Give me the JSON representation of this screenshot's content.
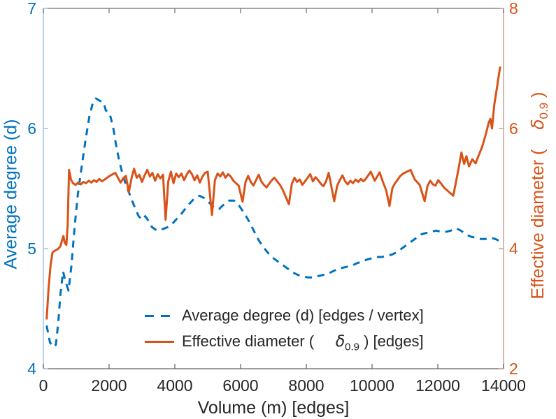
{
  "figure": {
    "background": "#ffffff",
    "frame": {
      "top_color": "#6f6f6f",
      "bottom_color": "#5f5f5f"
    },
    "x_axis": {
      "label": "Volume (m) [edges]",
      "tick_labels": [
        "0",
        "2000",
        "4000",
        "6000",
        "8000",
        "10000",
        "12000",
        "14000"
      ],
      "ticks": [
        0,
        2000,
        4000,
        6000,
        8000,
        10000,
        12000,
        14000
      ],
      "tick_text_color": "#262626",
      "label_color": "#262626"
    },
    "left_axis": {
      "label": "Average degree (d)",
      "tick_labels": [
        "4",
        "5",
        "6",
        "7"
      ],
      "ticks": [
        4,
        5,
        6,
        7
      ],
      "color": "#0072BD",
      "spine_color": "#a9c7e6"
    },
    "right_axis": {
      "label_prefix": "Effective diameter (    ",
      "delta": "δ",
      "subscript": "0.9",
      "label_suffix": " )",
      "tick_labels": [
        "2",
        "4",
        "6",
        "8"
      ],
      "ticks": [
        2,
        4,
        6,
        8
      ],
      "color": "#D95319",
      "spine_color": "#c9a99e"
    },
    "legend": {
      "text_color": "#262626",
      "items": [
        {
          "label": "Average degree (d) [edges / vertex]",
          "style": "dashed",
          "color": "#0072BD"
        },
        {
          "label_prefix": "Effective diameter (     ",
          "delta": "δ",
          "subscript": "0.9",
          "label_suffix": " ) [edges]",
          "style": "solid",
          "color": "#D95319"
        }
      ]
    }
  },
  "chart_data": {
    "type": "line",
    "title": "",
    "xlabel": "Volume (m) [edges]",
    "x_range": [
      0,
      14000
    ],
    "left_ylabel": "Average degree (d)",
    "left_ylim": [
      4,
      7
    ],
    "right_ylabel": "Effective diameter ( δ_0.9 )",
    "right_ylim": [
      2,
      8
    ],
    "grid": false,
    "legend_position": "south-inside",
    "series": [
      {
        "name": "Average degree (d) [edges / vertex]",
        "axis": "left",
        "color": "#0072BD",
        "line_style": "dashed",
        "points": [
          [
            100,
            4.36
          ],
          [
            200,
            4.22
          ],
          [
            300,
            4.18
          ],
          [
            380,
            4.2
          ],
          [
            450,
            4.38
          ],
          [
            520,
            4.62
          ],
          [
            600,
            4.81
          ],
          [
            660,
            4.74
          ],
          [
            766,
            4.65
          ],
          [
            850,
            4.85
          ],
          [
            950,
            5.18
          ],
          [
            1050,
            5.45
          ],
          [
            1150,
            5.65
          ],
          [
            1280,
            5.9
          ],
          [
            1400,
            6.1
          ],
          [
            1510,
            6.22
          ],
          [
            1600,
            6.25
          ],
          [
            1720,
            6.23
          ],
          [
            1830,
            6.22
          ],
          [
            1900,
            6.15
          ],
          [
            1980,
            6.14
          ],
          [
            2040,
            6.1
          ],
          [
            2130,
            6.0
          ],
          [
            2200,
            5.88
          ],
          [
            2300,
            5.74
          ],
          [
            2400,
            5.63
          ],
          [
            2500,
            5.54
          ],
          [
            2600,
            5.47
          ],
          [
            2700,
            5.4
          ],
          [
            2800,
            5.33
          ],
          [
            2900,
            5.27
          ],
          [
            3000,
            5.24
          ],
          [
            3100,
            5.27
          ],
          [
            3200,
            5.23
          ],
          [
            3300,
            5.18
          ],
          [
            3400,
            5.16
          ],
          [
            3500,
            5.15
          ],
          [
            3600,
            5.16
          ],
          [
            3700,
            5.17
          ],
          [
            3800,
            5.18
          ],
          [
            3900,
            5.2
          ],
          [
            4000,
            5.23
          ],
          [
            4200,
            5.29
          ],
          [
            4400,
            5.36
          ],
          [
            4600,
            5.42
          ],
          [
            4750,
            5.44
          ],
          [
            4900,
            5.42
          ],
          [
            5050,
            5.38
          ],
          [
            5200,
            5.34
          ],
          [
            5350,
            5.33
          ],
          [
            5500,
            5.37
          ],
          [
            5650,
            5.4
          ],
          [
            5800,
            5.4
          ],
          [
            5950,
            5.36
          ],
          [
            6100,
            5.3
          ],
          [
            6250,
            5.23
          ],
          [
            6400,
            5.15
          ],
          [
            6550,
            5.07
          ],
          [
            6700,
            5.01
          ],
          [
            6850,
            4.96
          ],
          [
            7000,
            4.92
          ],
          [
            7150,
            4.89
          ],
          [
            7300,
            4.86
          ],
          [
            7450,
            4.83
          ],
          [
            7600,
            4.8
          ],
          [
            7750,
            4.78
          ],
          [
            7900,
            4.77
          ],
          [
            8050,
            4.76
          ],
          [
            8200,
            4.76
          ],
          [
            8350,
            4.77
          ],
          [
            8500,
            4.78
          ],
          [
            8650,
            4.79
          ],
          [
            8800,
            4.81
          ],
          [
            8950,
            4.83
          ],
          [
            9100,
            4.84
          ],
          [
            9250,
            4.85
          ],
          [
            9400,
            4.86
          ],
          [
            9550,
            4.88
          ],
          [
            9700,
            4.89
          ],
          [
            9850,
            4.91
          ],
          [
            10000,
            4.92
          ],
          [
            10150,
            4.93
          ],
          [
            10300,
            4.93
          ],
          [
            10450,
            4.94
          ],
          [
            10600,
            4.95
          ],
          [
            10750,
            4.97
          ],
          [
            10900,
            5.0
          ],
          [
            11050,
            5.03
          ],
          [
            11200,
            5.06
          ],
          [
            11350,
            5.09
          ],
          [
            11500,
            5.12
          ],
          [
            11650,
            5.13
          ],
          [
            11800,
            5.14
          ],
          [
            11950,
            5.15
          ],
          [
            12100,
            5.14
          ],
          [
            12250,
            5.14
          ],
          [
            12400,
            5.15
          ],
          [
            12550,
            5.17
          ],
          [
            12700,
            5.15
          ],
          [
            12850,
            5.12
          ],
          [
            13000,
            5.1
          ],
          [
            13150,
            5.09
          ],
          [
            13300,
            5.08
          ],
          [
            13450,
            5.08
          ],
          [
            13600,
            5.09
          ],
          [
            13750,
            5.08
          ],
          [
            13900,
            5.06
          ]
        ]
      },
      {
        "name": "Effective diameter ( δ_0.9 ) [edges]",
        "axis": "right",
        "color": "#D95319",
        "line_style": "solid",
        "points": [
          [
            100,
            2.82
          ],
          [
            160,
            3.35
          ],
          [
            220,
            3.72
          ],
          [
            280,
            3.94
          ],
          [
            340,
            3.96
          ],
          [
            400,
            3.98
          ],
          [
            460,
            4.0
          ],
          [
            520,
            4.04
          ],
          [
            570,
            4.14
          ],
          [
            610,
            4.21
          ],
          [
            650,
            4.1
          ],
          [
            700,
            4.06
          ],
          [
            740,
            4.4
          ],
          [
            780,
            5.31
          ],
          [
            840,
            5.15
          ],
          [
            900,
            5.09
          ],
          [
            980,
            5.06
          ],
          [
            1060,
            5.1
          ],
          [
            1140,
            5.07
          ],
          [
            1220,
            5.11
          ],
          [
            1300,
            5.09
          ],
          [
            1380,
            5.13
          ],
          [
            1460,
            5.1
          ],
          [
            1540,
            5.14
          ],
          [
            1620,
            5.11
          ],
          [
            1700,
            5.16
          ],
          [
            1780,
            5.12
          ],
          [
            1860,
            5.15
          ],
          [
            1940,
            5.18
          ],
          [
            2020,
            5.21
          ],
          [
            2110,
            5.24
          ],
          [
            2190,
            5.26
          ],
          [
            2270,
            5.18
          ],
          [
            2350,
            5.1
          ],
          [
            2430,
            5.17
          ],
          [
            2510,
            5.21
          ],
          [
            2600,
            4.94
          ],
          [
            2690,
            5.19
          ],
          [
            2760,
            5.33
          ],
          [
            2840,
            5.18
          ],
          [
            2920,
            5.23
          ],
          [
            3000,
            5.11
          ],
          [
            3080,
            5.22
          ],
          [
            3160,
            5.31
          ],
          [
            3240,
            5.2
          ],
          [
            3320,
            5.26
          ],
          [
            3400,
            5.13
          ],
          [
            3480,
            5.24
          ],
          [
            3560,
            5.17
          ],
          [
            3640,
            5.23
          ],
          [
            3720,
            4.48
          ],
          [
            3800,
            5.12
          ],
          [
            3880,
            5.28
          ],
          [
            3960,
            5.09
          ],
          [
            4040,
            5.25
          ],
          [
            4120,
            5.19
          ],
          [
            4200,
            5.25
          ],
          [
            4280,
            5.14
          ],
          [
            4360,
            5.23
          ],
          [
            4440,
            5.3
          ],
          [
            4520,
            5.24
          ],
          [
            4600,
            5.14
          ],
          [
            4680,
            5.22
          ],
          [
            4760,
            5.1
          ],
          [
            4840,
            5.2
          ],
          [
            4920,
            5.26
          ],
          [
            5000,
            5.28
          ],
          [
            5130,
            4.56
          ],
          [
            5220,
            5.14
          ],
          [
            5300,
            5.25
          ],
          [
            5380,
            5.2
          ],
          [
            5460,
            5.27
          ],
          [
            5540,
            5.18
          ],
          [
            5620,
            5.24
          ],
          [
            5700,
            5.2
          ],
          [
            5780,
            5.13
          ],
          [
            5860,
            5.09
          ],
          [
            5940,
            5.05
          ],
          [
            6060,
            4.78
          ],
          [
            6150,
            5.11
          ],
          [
            6230,
            5.21
          ],
          [
            6310,
            5.11
          ],
          [
            6390,
            5.05
          ],
          [
            6470,
            5.14
          ],
          [
            6550,
            5.23
          ],
          [
            6630,
            5.12
          ],
          [
            6710,
            5.06
          ],
          [
            6790,
            5.02
          ],
          [
            6870,
            5.08
          ],
          [
            6950,
            5.14
          ],
          [
            7030,
            5.18
          ],
          [
            7110,
            5.12
          ],
          [
            7200,
            5.06
          ],
          [
            7280,
            4.98
          ],
          [
            7470,
            4.74
          ],
          [
            7560,
            5.08
          ],
          [
            7640,
            5.18
          ],
          [
            7720,
            5.11
          ],
          [
            7800,
            5.15
          ],
          [
            7880,
            5.06
          ],
          [
            7960,
            5.12
          ],
          [
            8040,
            5.18
          ],
          [
            8120,
            5.24
          ],
          [
            8200,
            5.12
          ],
          [
            8280,
            5.19
          ],
          [
            8360,
            5.14
          ],
          [
            8440,
            5.08
          ],
          [
            8520,
            5.04
          ],
          [
            8600,
            5.12
          ],
          [
            8680,
            5.26
          ],
          [
            8850,
            4.79
          ],
          [
            8940,
            5.05
          ],
          [
            9020,
            5.14
          ],
          [
            9100,
            5.22
          ],
          [
            9180,
            5.12
          ],
          [
            9260,
            5.07
          ],
          [
            9340,
            5.13
          ],
          [
            9420,
            5.09
          ],
          [
            9500,
            5.15
          ],
          [
            9580,
            5.11
          ],
          [
            9660,
            5.16
          ],
          [
            9740,
            5.12
          ],
          [
            9820,
            5.17
          ],
          [
            9960,
            5.28
          ],
          [
            10080,
            5.13
          ],
          [
            10230,
            5.27
          ],
          [
            10330,
            5.11
          ],
          [
            10430,
            4.97
          ],
          [
            10530,
            4.71
          ],
          [
            10620,
            5.01
          ],
          [
            10700,
            5.09
          ],
          [
            10780,
            5.15
          ],
          [
            10860,
            5.21
          ],
          [
            10950,
            5.25
          ],
          [
            11170,
            5.31
          ],
          [
            11300,
            5.15
          ],
          [
            11450,
            5.06
          ],
          [
            11600,
            4.79
          ],
          [
            11690,
            5.05
          ],
          [
            11770,
            5.13
          ],
          [
            11850,
            5.07
          ],
          [
            11930,
            5.05
          ],
          [
            12010,
            5.14
          ],
          [
            12090,
            5.09
          ],
          [
            12200,
            5.01
          ],
          [
            12470,
            4.88
          ],
          [
            12600,
            5.24
          ],
          [
            12720,
            5.6
          ],
          [
            12800,
            5.41
          ],
          [
            12870,
            5.54
          ],
          [
            12950,
            5.37
          ],
          [
            13050,
            5.49
          ],
          [
            13150,
            5.42
          ],
          [
            13250,
            5.56
          ],
          [
            13350,
            5.7
          ],
          [
            13450,
            5.88
          ],
          [
            13550,
            6.1
          ],
          [
            13600,
            6.16
          ],
          [
            13650,
            6.0
          ],
          [
            13720,
            6.4
          ],
          [
            13800,
            6.68
          ],
          [
            13860,
            6.9
          ],
          [
            13900,
            7.03
          ]
        ]
      }
    ]
  }
}
